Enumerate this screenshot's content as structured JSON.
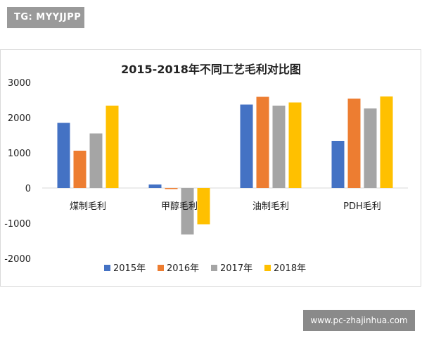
{
  "watermarks": {
    "top": "TG: MYYJJPP",
    "bottom": "www.pc-zhajinhua.com"
  },
  "chart_data": {
    "type": "bar",
    "title": "2015-2018年不同工艺毛利对比图",
    "categories": [
      "煤制毛利",
      "甲醇毛利",
      "油制毛利",
      "PDH毛利"
    ],
    "series": [
      {
        "name": "2015年",
        "color": "#4472C4",
        "values": [
          1850,
          100,
          2370,
          1340
        ]
      },
      {
        "name": "2016年",
        "color": "#ED7D31",
        "values": [
          1060,
          -30,
          2590,
          2540
        ]
      },
      {
        "name": "2017年",
        "color": "#A5A5A5",
        "values": [
          1550,
          -1320,
          2340,
          2260
        ]
      },
      {
        "name": "2018年",
        "color": "#FFC000",
        "values": [
          2340,
          -1030,
          2430,
          2600
        ]
      }
    ],
    "yticks": [
      "3000",
      "2000",
      "1000",
      "0",
      "-1000",
      "-2000"
    ],
    "ylim": [
      -2000,
      3000
    ],
    "grid": false,
    "legend": "bottom"
  }
}
